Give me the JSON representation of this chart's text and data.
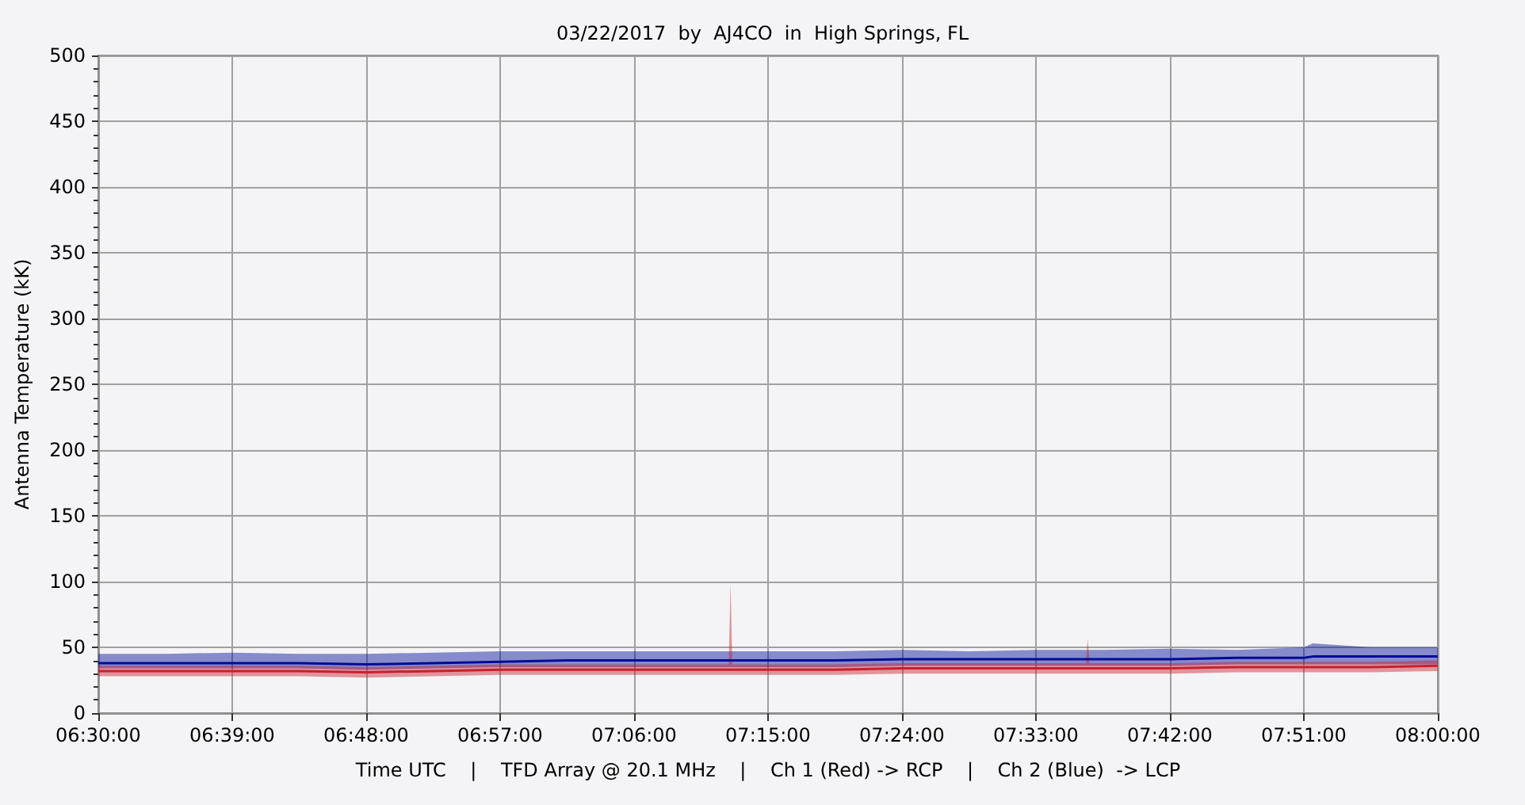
{
  "chart_data": {
    "type": "line",
    "title": "03/22/2017  by  AJ4CO  in  High Springs, FL",
    "xlabel": "Time UTC    |    TFD Array @ 20.1 MHz    |    Ch 1 (Red) -> RCP    |    Ch 2 (Blue)  -> LCP",
    "ylabel": "Antenna Temperature (kK)",
    "xlim": [
      6.5,
      8.0
    ],
    "xticks": [
      {
        "value": 6.5,
        "label": "06:30:00"
      },
      {
        "value": 6.65,
        "label": "06:39:00"
      },
      {
        "value": 6.8,
        "label": "06:48:00"
      },
      {
        "value": 6.95,
        "label": "06:57:00"
      },
      {
        "value": 7.1,
        "label": "07:06:00"
      },
      {
        "value": 7.25,
        "label": "07:15:00"
      },
      {
        "value": 7.4,
        "label": "07:24:00"
      },
      {
        "value": 7.55,
        "label": "07:33:00"
      },
      {
        "value": 7.7,
        "label": "07:42:00"
      },
      {
        "value": 7.85,
        "label": "07:51:00"
      },
      {
        "value": 8.0,
        "label": "08:00:00"
      }
    ],
    "ylim": [
      0,
      500
    ],
    "yticks": [
      0,
      50,
      100,
      150,
      200,
      250,
      300,
      350,
      400,
      450,
      500
    ],
    "grid": true,
    "marker": "none",
    "line_style": "solid",
    "series": [
      {
        "color": "#000a96",
        "x": [
          6.5,
          6.575,
          6.65,
          6.725,
          6.8,
          6.875,
          6.95,
          7.025,
          7.1,
          7.175,
          7.25,
          7.325,
          7.4,
          7.475,
          7.55,
          7.625,
          7.7,
          7.775,
          7.85,
          7.86,
          7.925,
          8.0
        ],
        "values": [
          38,
          38,
          38,
          38,
          37,
          38,
          39,
          40,
          40,
          40,
          40,
          40,
          41,
          41,
          41,
          41,
          41,
          42,
          42,
          43,
          43,
          43
        ],
        "lower": [
          34,
          34,
          34,
          34,
          33,
          34,
          35,
          35,
          35,
          35,
          35,
          35,
          36,
          36,
          36,
          36,
          36,
          37,
          37,
          37,
          37,
          37
        ],
        "upper": [
          45,
          45,
          46,
          45,
          45,
          46,
          47,
          47,
          47,
          47,
          47,
          47,
          48,
          47,
          48,
          48,
          49,
          48,
          50,
          53,
          50,
          50
        ]
      },
      {
        "color": "#c8202e",
        "x": [
          6.5,
          6.575,
          6.65,
          6.725,
          6.8,
          6.875,
          6.95,
          7.025,
          7.1,
          7.175,
          7.206,
          7.208,
          7.21,
          7.25,
          7.325,
          7.4,
          7.475,
          7.55,
          7.606,
          7.608,
          7.61,
          7.625,
          7.7,
          7.775,
          7.85,
          7.925,
          8.0
        ],
        "values": [
          32,
          32,
          32,
          32,
          31,
          32,
          33,
          33,
          33,
          33,
          33,
          33,
          33,
          33,
          33,
          34,
          34,
          34,
          34,
          34,
          34,
          34,
          34,
          35,
          35,
          35,
          36
        ],
        "lower": [
          28,
          28,
          28,
          28,
          27,
          28,
          29,
          29,
          29,
          29,
          29,
          29,
          29,
          29,
          29,
          30,
          30,
          30,
          30,
          30,
          30,
          30,
          30,
          31,
          31,
          31,
          32
        ],
        "upper": [
          36,
          36,
          36,
          36,
          35,
          36,
          37,
          37,
          37,
          37,
          37,
          100,
          37,
          37,
          37,
          38,
          38,
          38,
          38,
          57,
          38,
          38,
          38,
          39,
          39,
          39,
          40
        ]
      }
    ]
  }
}
